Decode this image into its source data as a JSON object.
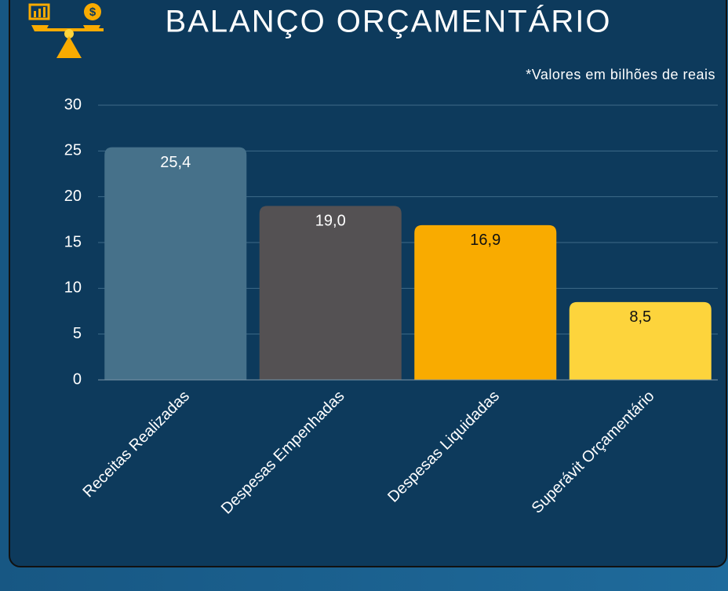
{
  "chart_data": {
    "type": "bar",
    "title": "BALANÇO ORÇAMENTÁRIO",
    "subtitle": "*Valores em bilhões de reais",
    "categories": [
      "Receitas Realizadas",
      "Despesas Empenhadas",
      "Despesas Liquidadas",
      "Superávit Orçamentário"
    ],
    "values": [
      25.4,
      19.0,
      16.9,
      8.5
    ],
    "value_labels": [
      "25,4",
      "19,0",
      "16,9",
      "8,5"
    ],
    "colors": [
      "#46718a",
      "#545153",
      "#f9ab00",
      "#fdd43c"
    ],
    "ylim": [
      0,
      30
    ],
    "yticks": [
      0,
      5,
      10,
      15,
      20,
      25,
      30
    ],
    "grid": true
  }
}
